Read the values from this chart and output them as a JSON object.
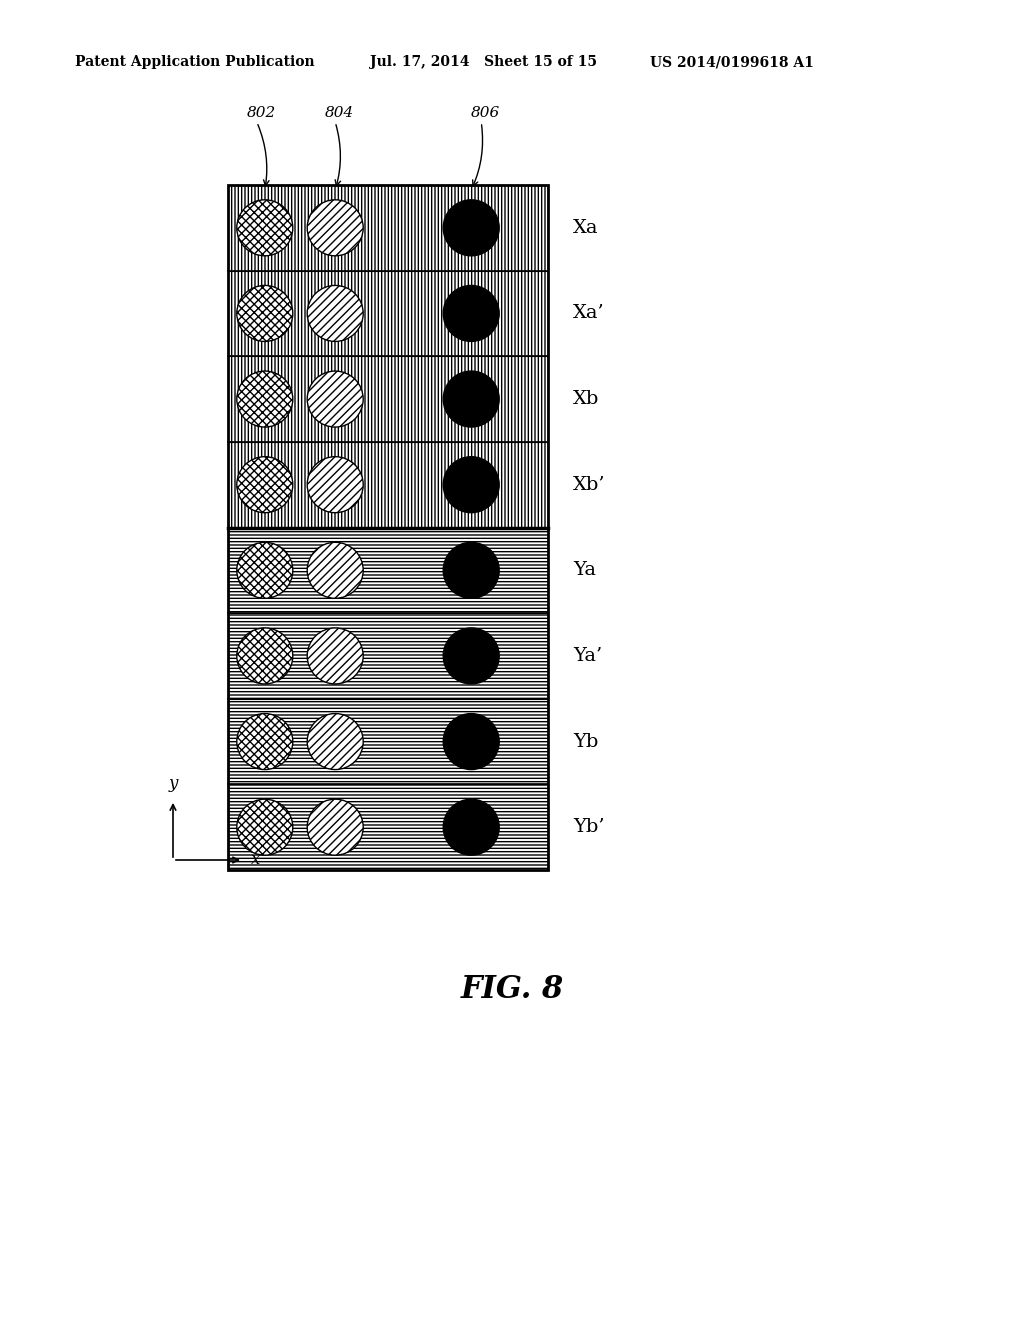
{
  "header_left": "Patent Application Publication",
  "header_mid": "Jul. 17, 2014   Sheet 15 of 15",
  "header_right": "US 2014/0199618 A1",
  "fig_caption": "FIG. 8",
  "row_labels": [
    "Xa",
    "Xa’",
    "Xb",
    "Xb’",
    "Ya",
    "Ya’",
    "Yb",
    "Yb’"
  ],
  "annotations": [
    "802",
    "804",
    "806"
  ],
  "background_color": "#ffffff"
}
